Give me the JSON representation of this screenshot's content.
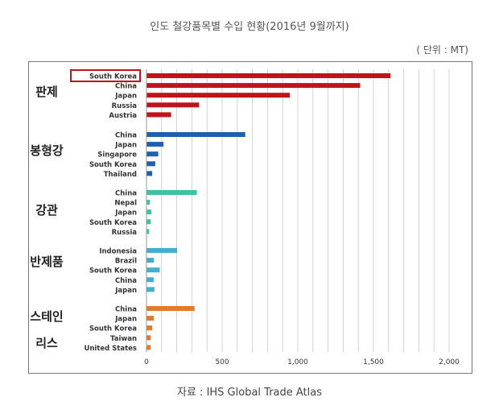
{
  "title": "인도 철강품목별 수입 현황(2016년 9월까지)",
  "unit": "( 단위 : MT)",
  "source": "자료 : IHS Global Trade Atlas",
  "colors": {
    "판제": "#c0141c",
    "봉형강": "#1f5fae",
    "강관": "#3cc2a0",
    "반제품": "#45aed0",
    "스테인리스": "#e07a2e",
    "highlight_box": "#c0141c",
    "grid": "#c8c8c8"
  },
  "chart_data": {
    "type": "bar",
    "orientation": "horizontal",
    "title": "인도 철강품목별 수입 현황(2016년 9월까지)",
    "unit": "( 단위 : MT)",
    "xlim": [
      0,
      2000
    ],
    "xticks": [
      "0",
      "500",
      "1,000",
      "1,500",
      "2,000"
    ],
    "grid": "vertical",
    "highlight": "South Korea",
    "groups": [
      {
        "name": "판제",
        "categories": [
          "South Korea",
          "China",
          "Japan",
          "Russia",
          "Austria"
        ],
        "values": [
          1610,
          1410,
          945,
          345,
          160
        ]
      },
      {
        "name": "봉형강",
        "categories": [
          "China",
          "Japan",
          "Singapore",
          "South Korea",
          "Thailand"
        ],
        "values": [
          650,
          110,
          75,
          55,
          35
        ]
      },
      {
        "name": "강관",
        "categories": [
          "China",
          "Nepal",
          "Japan",
          "South Korea",
          "Russia"
        ],
        "values": [
          330,
          20,
          30,
          25,
          15
        ]
      },
      {
        "name": "반제품",
        "categories": [
          "Indonesia",
          "Brazil",
          "South Korea",
          "China",
          "Japan"
        ],
        "values": [
          200,
          45,
          85,
          45,
          50
        ]
      },
      {
        "name": "스테인리스",
        "categories": [
          "China",
          "Japan",
          "South Korea",
          "Taiwan",
          "United States"
        ],
        "values": [
          315,
          45,
          35,
          25,
          25
        ]
      }
    ]
  }
}
